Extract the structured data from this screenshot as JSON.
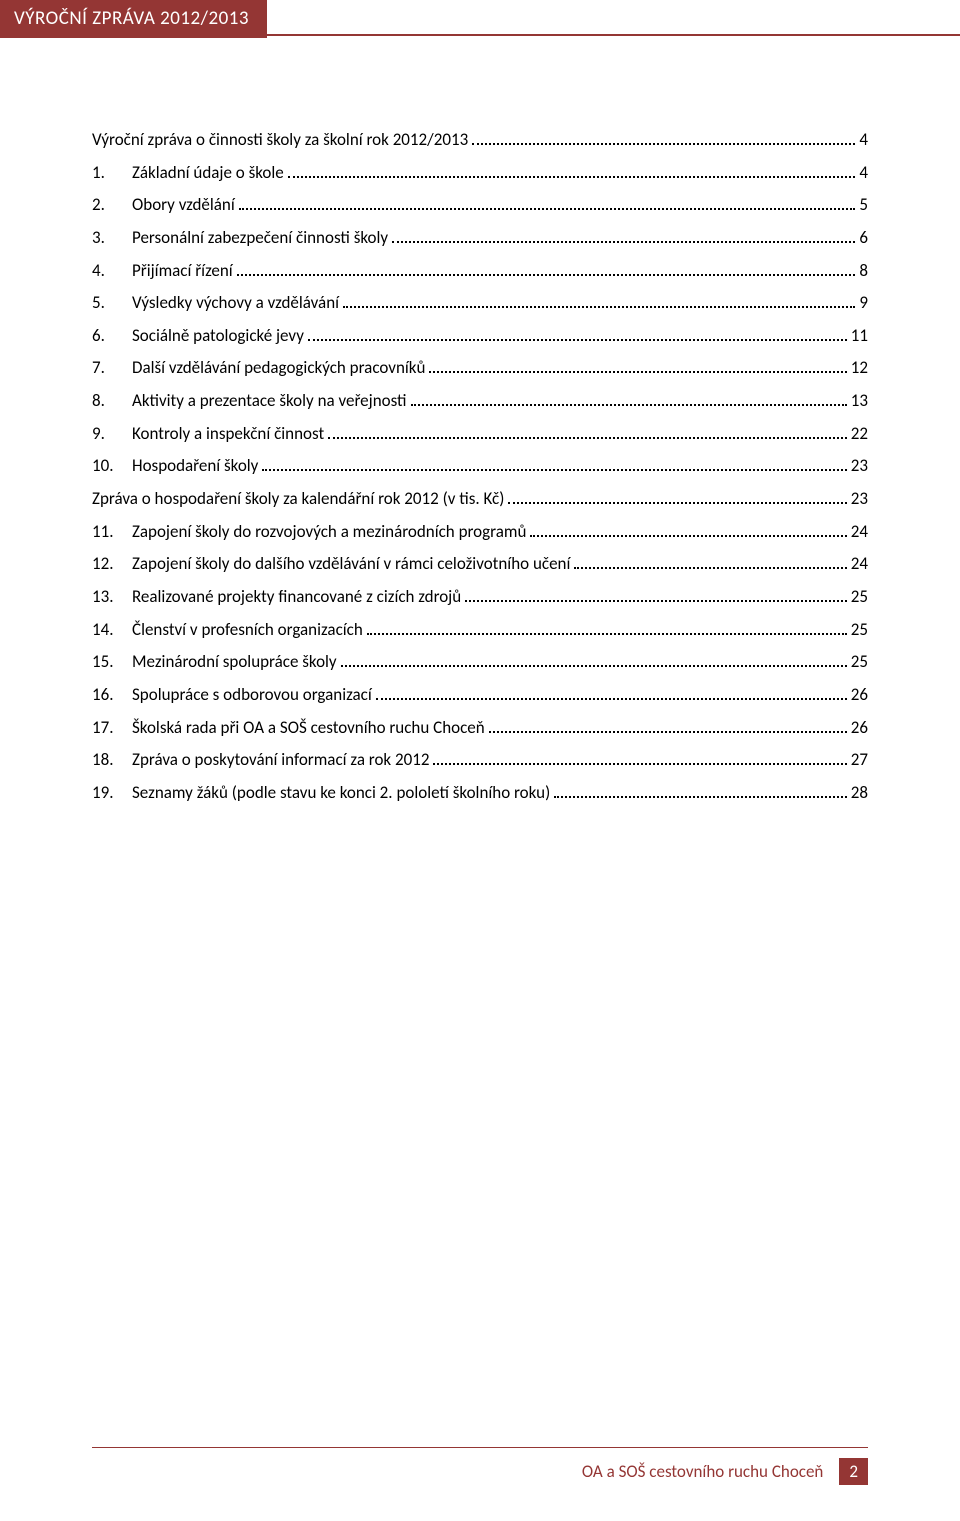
{
  "header": {
    "title": "VÝROČNÍ ZPRÁVA 2012/2013"
  },
  "colors": {
    "accent": "#943634",
    "text": "#000000",
    "background": "#ffffff"
  },
  "toc": {
    "items": [
      {
        "num": "",
        "text": "Výroční zpráva o činnosti školy za školní rok 2012/2013",
        "page": "4",
        "indent": false
      },
      {
        "num": "1.",
        "text": "Základní údaje o škole",
        "page": "4",
        "indent": true
      },
      {
        "num": "2.",
        "text": "Obory vzdělání",
        "page": "5",
        "indent": true
      },
      {
        "num": "3.",
        "text": "Personální zabezpečení činnosti školy",
        "page": "6",
        "indent": true
      },
      {
        "num": "4.",
        "text": "Přijímací řízení",
        "page": "8",
        "indent": true
      },
      {
        "num": "5.",
        "text": "Výsledky výchovy a vzdělávání",
        "page": "9",
        "indent": true
      },
      {
        "num": "6.",
        "text": "Sociálně patologické jevy",
        "page": "11",
        "indent": true
      },
      {
        "num": "7.",
        "text": "Další vzdělávání pedagogických pracovníků",
        "page": "12",
        "indent": true
      },
      {
        "num": "8.",
        "text": "Aktivity a prezentace školy na veřejnosti",
        "page": "13",
        "indent": true
      },
      {
        "num": "9.",
        "text": "Kontroly a inspekční činnost",
        "page": "22",
        "indent": true
      },
      {
        "num": "10.",
        "text": "Hospodaření školy",
        "page": "23",
        "indent": true
      },
      {
        "num": "",
        "text": "Zpráva o hospodaření školy za kalendářní rok 2012 (v tis. Kč)",
        "page": "23",
        "indent": false
      },
      {
        "num": "11.",
        "text": "Zapojení školy do rozvojových a mezinárodních programů",
        "page": "24",
        "indent": true
      },
      {
        "num": "12.",
        "text": "Zapojení školy do dalšího vzdělávání v rámci celoživotního učení",
        "page": "24",
        "indent": true
      },
      {
        "num": "13.",
        "text": "Realizované projekty financované z cizích zdrojů",
        "page": "25",
        "indent": true
      },
      {
        "num": "14.",
        "text": "Členství v profesních organizacích",
        "page": "25",
        "indent": true
      },
      {
        "num": "15.",
        "text": "Mezinárodní spolupráce školy",
        "page": "25",
        "indent": true
      },
      {
        "num": "16.",
        "text": "Spolupráce s odborovou organizací",
        "page": "26",
        "indent": true
      },
      {
        "num": "17.",
        "text": "Školská rada při OA a SOŠ cestovního ruchu Choceň",
        "page": "26",
        "indent": true
      },
      {
        "num": "18.",
        "text": "Zpráva o poskytování informací za rok 2012",
        "page": "27",
        "indent": true
      },
      {
        "num": "19.",
        "text": "Seznamy žáků (podle stavu ke konci 2. pololetí školního roku)",
        "page": "28",
        "indent": true
      }
    ]
  },
  "footer": {
    "text": "OA a SOŠ cestovního ruchu Choceň",
    "page": "2"
  }
}
